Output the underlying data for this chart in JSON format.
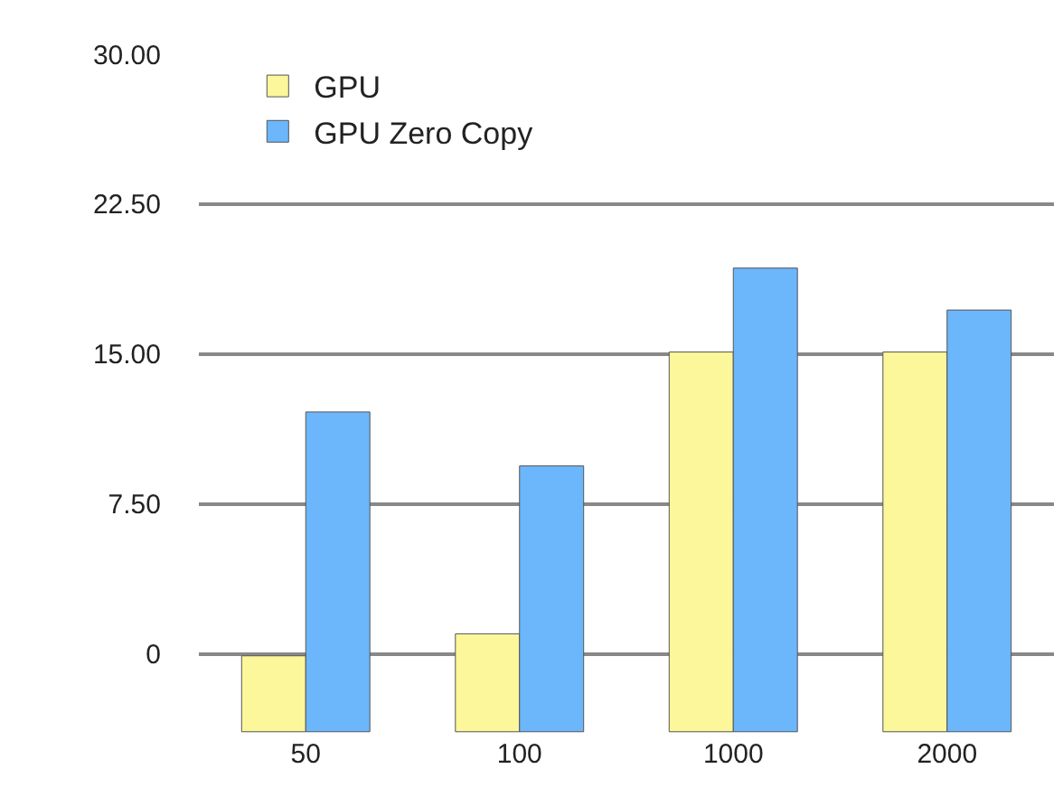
{
  "chart_data": {
    "type": "bar",
    "categories": [
      "50",
      "100",
      "1000",
      "2000"
    ],
    "series": [
      {
        "name": "GPU",
        "color": "#fbf79a",
        "base": [
          -3.9,
          -3.9,
          -3.9,
          -3.9
        ],
        "values": [
          3.8,
          4.9,
          19.0,
          19.0
        ]
      },
      {
        "name": "GPU Zero Copy",
        "color": "#6cb6fb",
        "base": [
          -3.9,
          -3.9,
          -3.9,
          -3.9
        ],
        "values": [
          16.0,
          13.3,
          23.2,
          21.1
        ]
      }
    ],
    "ylim": [
      -4,
      30
    ],
    "yticks": [
      {
        "value": 0,
        "label": "0"
      },
      {
        "value": 7.5,
        "label": "7.50"
      },
      {
        "value": 15,
        "label": "15.00"
      },
      {
        "value": 22.5,
        "label": "22.50"
      },
      {
        "value": 30,
        "label": "30.00"
      }
    ],
    "grid": "y",
    "legend": "top left"
  }
}
